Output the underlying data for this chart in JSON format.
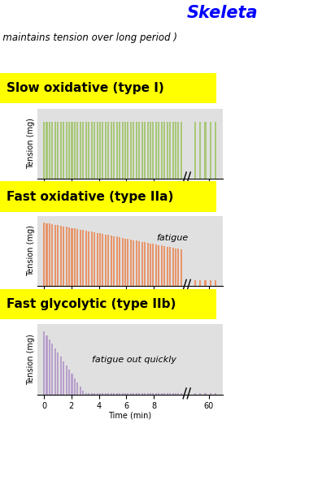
{
  "title1": "Slow oxidative (type I)",
  "title2": "Fast oxidative (type IIa)",
  "title3": "Fast glycolytic (type IIb)",
  "header": "( maintains tension over long period )",
  "skeletal_title": "Skeleta",
  "xlabel": "Time (min)",
  "ylabel": "Tension (mg)",
  "bar_color1": "#a8c878",
  "bar_color2": "#e8956a",
  "bar_color3": "#b8a0cc",
  "plot_bg": "#e0e0e0",
  "title_bg": "#ffff00",
  "fatigue_text2": "fatigue",
  "fatigue_text3": "fatigue out quickly",
  "n_bars_main": 50,
  "n_bars_60": 5
}
